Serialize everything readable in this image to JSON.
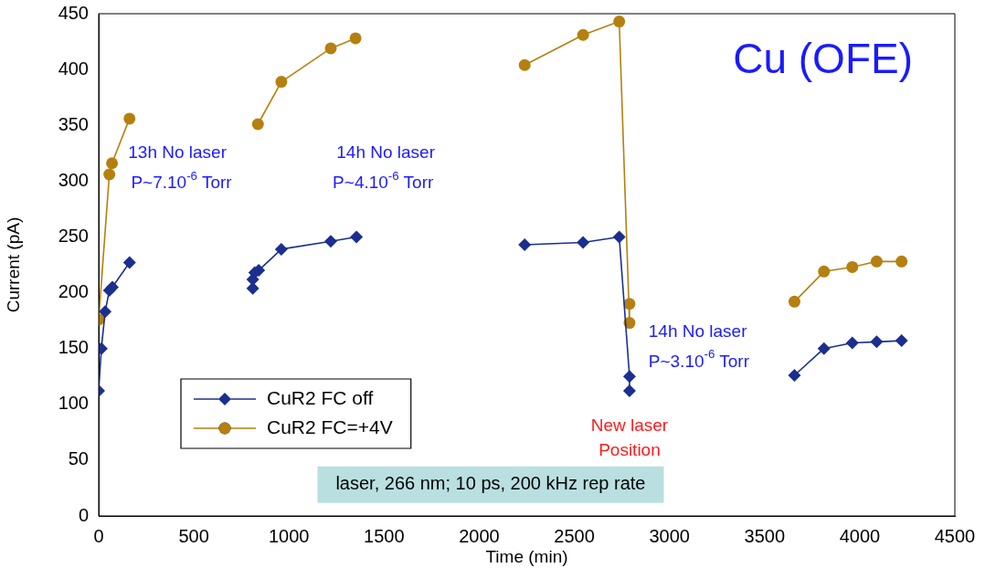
{
  "chart_data": {
    "type": "line",
    "title": "Cu (OFE)",
    "xlabel": "Time (min)",
    "ylabel": "Current (pA)",
    "xlim": [
      0,
      4500
    ],
    "xticks": [
      0,
      500,
      1000,
      1500,
      2000,
      2500,
      3000,
      3500,
      4000,
      4500
    ],
    "ylim": [
      0,
      450
    ],
    "yticks": [
      0,
      50,
      100,
      150,
      200,
      250,
      300,
      350,
      400,
      450
    ],
    "grid": false,
    "legend": "bottom left",
    "series": [
      {
        "name": "CuR2 FC off",
        "color": "#1a2f8f",
        "marker": "diamond",
        "x": [
          0,
          14,
          34,
          56,
          72,
          162,
          null,
          810,
          810,
          820,
          841,
          960,
          1220,
          1355,
          null,
          2239,
          2546,
          2736,
          2790,
          2790,
          null,
          3657,
          3812,
          3961,
          4089,
          4220
        ],
        "values": [
          112,
          150,
          183,
          202,
          205,
          227,
          null,
          204,
          212,
          218,
          220,
          239,
          246,
          250,
          null,
          243,
          245,
          250,
          125,
          112,
          null,
          126,
          150,
          155,
          156,
          157
        ]
      },
      {
        "name": "CuR2 FC=+4V",
        "color": "#b5800f",
        "marker": "circle",
        "x": [
          0,
          56,
          70,
          162,
          null,
          837,
          960,
          1220,
          1350,
          null,
          2239,
          2546,
          2736,
          2790,
          2790,
          null,
          3657,
          3812,
          3961,
          4089,
          4220
        ],
        "values": [
          176,
          306,
          316,
          356,
          null,
          351,
          389,
          419,
          428,
          null,
          404,
          431,
          443,
          173,
          190,
          null,
          192,
          219,
          223,
          228,
          228
        ]
      }
    ],
    "annotations": [
      "13h No laser",
      "P~7.10$^{-6}$ Torr",
      "14h No laser",
      "P~4.10$^{-6}$ Torr",
      "14h No laser",
      "P~3.10$^{-6}$ Torr",
      "New laser",
      "Position",
      "laser, 266 nm; 10 ps, 200 kHz rep rate"
    ]
  }
}
